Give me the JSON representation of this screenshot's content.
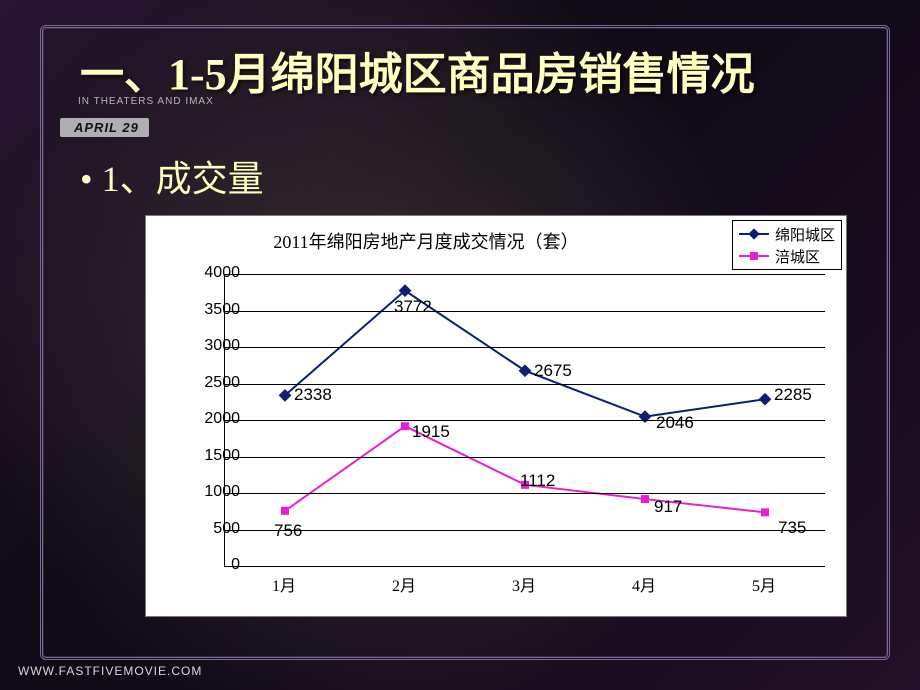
{
  "background": {
    "subtext": "IN THEATERS AND IMAX",
    "date_badge": "APRIL 29",
    "footer_url": "WWW.FASTFIVEMOVIE.COM"
  },
  "title": "一、1-5月绵阳城区商品房销售情况",
  "subtitle": "• 1、成交量",
  "chart": {
    "type": "line",
    "title": "2011年绵阳房地产月度成交情况（套）",
    "title_fontsize": 18,
    "categories": [
      "1月",
      "2月",
      "3月",
      "4月",
      "5月"
    ],
    "ylim": [
      0,
      4000
    ],
    "ytick_step": 500,
    "yticks": [
      0,
      500,
      1000,
      1500,
      2000,
      2500,
      3000,
      3500,
      4000
    ],
    "grid_color": "#000000",
    "background_color": "#ffffff",
    "series": [
      {
        "name": "绵阳城区",
        "color": "#0b1f73",
        "marker": "diamond",
        "marker_size": 9,
        "line_width": 2,
        "values": [
          2338,
          3772,
          2675,
          2046,
          2285
        ]
      },
      {
        "name": "涪城区",
        "color": "#e81ed4",
        "marker": "square",
        "marker_size": 8,
        "line_width": 2,
        "values": [
          756,
          1915,
          1112,
          917,
          735
        ]
      }
    ],
    "label_fontsize": 17,
    "tick_fontsize": 16
  }
}
